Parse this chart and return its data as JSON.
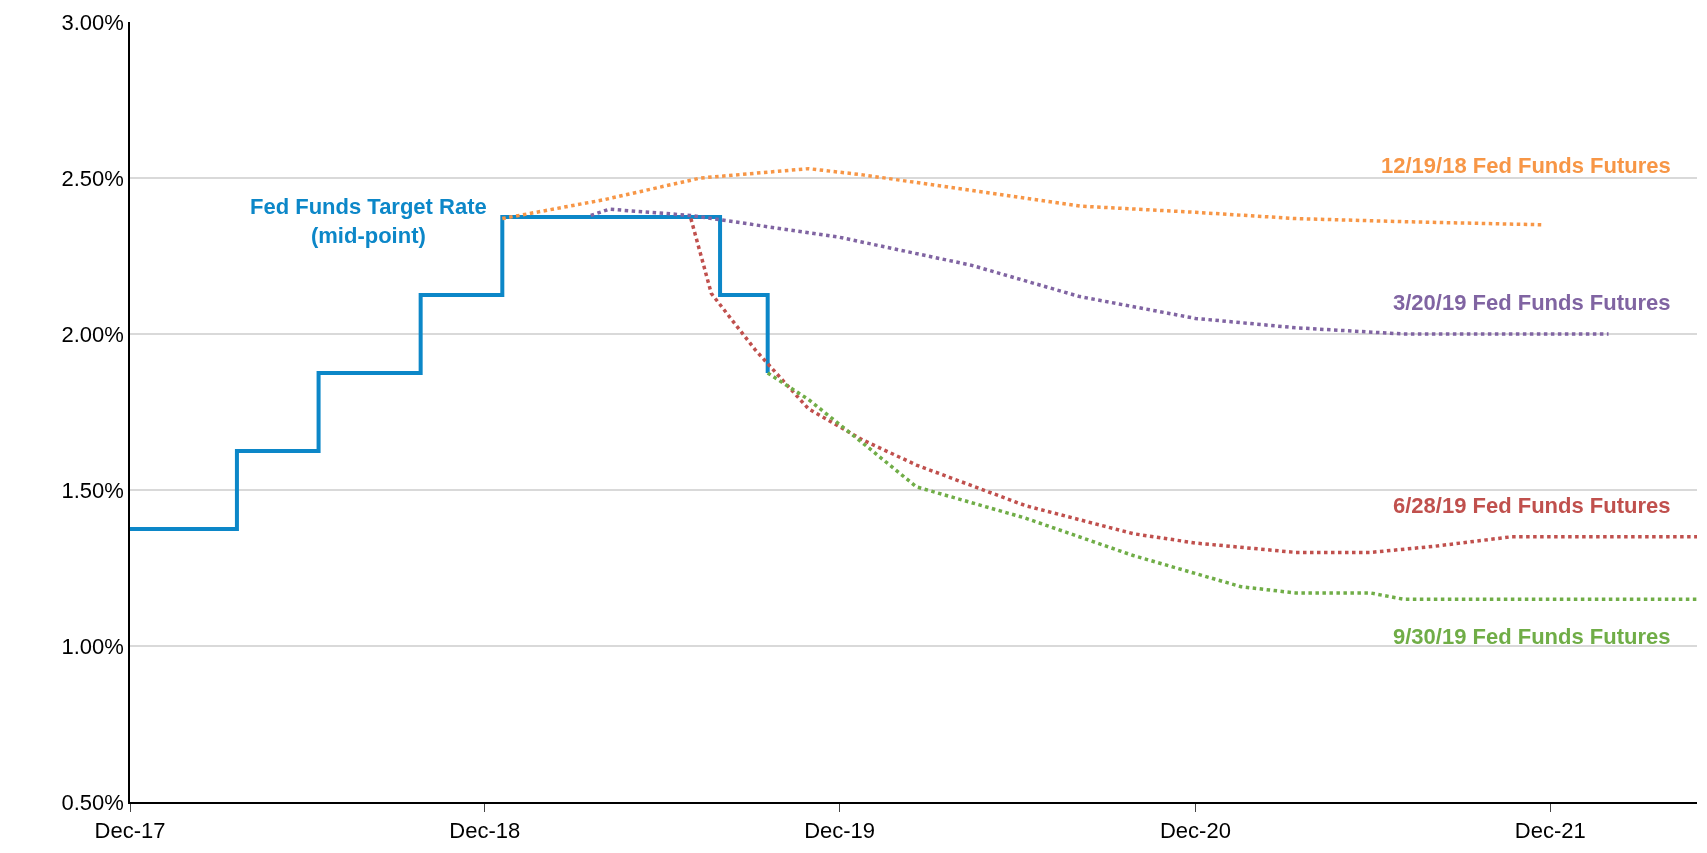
{
  "chart_data": {
    "type": "line",
    "xlim": [
      "2017-12-01",
      "2022-05-01"
    ],
    "xticks": [
      {
        "value": "2017-12-01",
        "label": "Dec-17"
      },
      {
        "value": "2018-12-01",
        "label": "Dec-18"
      },
      {
        "value": "2019-12-01",
        "label": "Dec-19"
      },
      {
        "value": "2020-12-01",
        "label": "Dec-20"
      },
      {
        "value": "2021-12-01",
        "label": "Dec-21"
      }
    ],
    "ylim": [
      0.5,
      3.0
    ],
    "yticks": [
      {
        "value": 0.5,
        "label": "0.50%"
      },
      {
        "value": 1.0,
        "label": "1.00%"
      },
      {
        "value": 1.5,
        "label": "1.50%"
      },
      {
        "value": 2.0,
        "label": "2.00%"
      },
      {
        "value": 2.5,
        "label": "2.50%"
      },
      {
        "value": 3.0,
        "label": "3.00%"
      }
    ],
    "grid": "y",
    "legend": false,
    "series": [
      {
        "name": "Fed Funds Target Rate\n(mid-point)",
        "type": "step",
        "color": "#0c87c8",
        "line_style": "solid",
        "x": [
          "2017-12-01",
          "2018-03-21",
          "2018-06-13",
          "2018-09-26",
          "2018-12-19",
          "2019-07-31",
          "2019-09-18"
        ],
        "values": [
          1.375,
          1.625,
          1.875,
          2.125,
          2.375,
          2.125,
          1.875
        ]
      },
      {
        "name": "12/19/18 Fed Funds Futures",
        "color": "#f79646",
        "line_style": "dotted",
        "x": [
          "2018-12-19",
          "2019-04-02",
          "2019-07-11",
          "2019-10-30",
          "2019-12-25",
          "2020-04-15",
          "2020-08-04",
          "2020-12-01",
          "2021-03-14",
          "2021-07-03",
          "2021-11-24"
        ],
        "values": [
          2.37,
          2.43,
          2.5,
          2.53,
          2.51,
          2.46,
          2.41,
          2.39,
          2.37,
          2.36,
          2.35
        ]
      },
      {
        "name": "3/20/19 Fed Funds Futures",
        "color": "#8064a2",
        "line_style": "dotted",
        "x": [
          "2019-03-20",
          "2019-04-08",
          "2019-07-01",
          "2019-12-01",
          "2020-04-15",
          "2020-08-04",
          "2020-12-01",
          "2021-03-14",
          "2021-07-03",
          "2022-01-30"
        ],
        "values": [
          2.38,
          2.4,
          2.38,
          2.31,
          2.22,
          2.12,
          2.05,
          2.02,
          2.0,
          2.0
        ]
      },
      {
        "name": "6/28/19 Fed Funds Futures",
        "color": "#c0504d",
        "line_style": "dotted",
        "x": [
          "2019-07-01",
          "2019-07-22",
          "2019-09-05",
          "2019-10-30",
          "2019-12-25",
          "2020-02-18",
          "2020-06-09",
          "2020-09-28",
          "2020-12-01",
          "2021-03-14",
          "2021-05-30",
          "2021-08-05",
          "2021-10-22",
          "2022-05-01"
        ],
        "values": [
          2.37,
          2.13,
          1.95,
          1.76,
          1.66,
          1.58,
          1.45,
          1.36,
          1.33,
          1.3,
          1.3,
          1.32,
          1.35,
          1.35
        ]
      },
      {
        "name": "9/30/19 Fed Funds Futures",
        "color": "#70ad47",
        "line_style": "dotted",
        "x": [
          "2019-09-18",
          "2019-10-30",
          "2019-12-25",
          "2020-02-18",
          "2020-06-09",
          "2020-09-28",
          "2021-01-17",
          "2021-03-14",
          "2021-05-30",
          "2021-07-03",
          "2022-05-01"
        ],
        "values": [
          1.875,
          1.79,
          1.65,
          1.51,
          1.41,
          1.29,
          1.19,
          1.17,
          1.17,
          1.15,
          1.15
        ]
      }
    ]
  }
}
